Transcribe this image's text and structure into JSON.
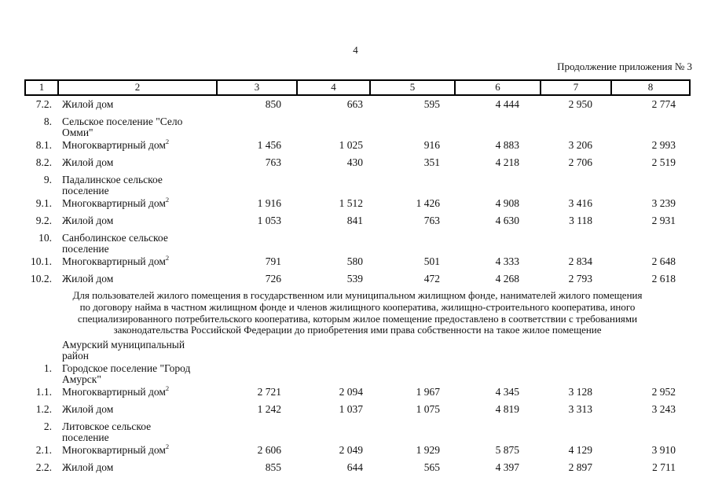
{
  "page": {
    "number": "4",
    "continuation": "Продолжение приложения № 3"
  },
  "table": {
    "header_columns": [
      "1",
      "2",
      "3",
      "4",
      "5",
      "6",
      "7",
      "8"
    ],
    "rows_top": [
      {
        "num": "7.2.",
        "name_lines": [
          "Жилой дом"
        ],
        "values": [
          "850",
          "663",
          "595",
          "4 444",
          "2 950",
          "2 774"
        ]
      },
      {
        "num": "8.",
        "name_lines": [
          "Сельское поселение \"Село",
          "Омми\""
        ],
        "values": []
      },
      {
        "num": "8.1.",
        "name_lines": [
          "Многоквартирный дом"
        ],
        "sup": "2",
        "values": [
          "1 456",
          "1 025",
          "916",
          "4 883",
          "3 206",
          "2 993"
        ]
      },
      {
        "num": "8.2.",
        "name_lines": [
          "Жилой дом"
        ],
        "values": [
          "763",
          "430",
          "351",
          "4 218",
          "2 706",
          "2 519"
        ]
      },
      {
        "num": "9.",
        "name_lines": [
          "Падалинское сельское",
          "поселение"
        ],
        "values": []
      },
      {
        "num": "9.1.",
        "name_lines": [
          "Многоквартирный дом"
        ],
        "sup": "2",
        "values": [
          "1 916",
          "1 512",
          "1 426",
          "4 908",
          "3 416",
          "3 239"
        ]
      },
      {
        "num": "9.2.",
        "name_lines": [
          "Жилой дом"
        ],
        "values": [
          "1 053",
          "841",
          "763",
          "4 630",
          "3 118",
          "2 931"
        ]
      },
      {
        "num": "10.",
        "name_lines": [
          "Санболинское сельское",
          "поселение"
        ],
        "values": []
      },
      {
        "num": "10.1.",
        "name_lines": [
          "Многоквартирный дом"
        ],
        "sup": "2",
        "values": [
          "791",
          "580",
          "501",
          "4 333",
          "2 834",
          "2 648"
        ]
      },
      {
        "num": "10.2.",
        "name_lines": [
          "Жилой дом"
        ],
        "values": [
          "726",
          "539",
          "472",
          "4 268",
          "2 793",
          "2 618"
        ]
      }
    ],
    "note_lines": [
      "Для пользователей жилого помещения в государственном или муниципальном жилищном фонде, нанимателей жилого помещения",
      "по договору найма в частном жилищном фонде и членов жилищного кооператива, жилищно-строительного кооператива, иного",
      "специализированного потребительского кооператива, которым жилое помещение предоставлено в соответствии с требованиями",
      "законодательства Российской Федерации до приобретения ими права собственности на такое жилое помещение"
    ],
    "rows_bottom": [
      {
        "num": "",
        "name_lines": [
          "Амурский муниципальный",
          "район"
        ],
        "values": []
      },
      {
        "num": "1.",
        "name_lines": [
          "Городское поселение \"Город",
          "Амурск\""
        ],
        "values": []
      },
      {
        "num": "1.1.",
        "name_lines": [
          "Многоквартирный дом"
        ],
        "sup": "2",
        "values": [
          "2 721",
          "2 094",
          "1 967",
          "4 345",
          "3 128",
          "2 952"
        ]
      },
      {
        "num": "1.2.",
        "name_lines": [
          "Жилой дом"
        ],
        "values": [
          "1 242",
          "1 037",
          "1 075",
          "4 819",
          "3 313",
          "3 243"
        ]
      },
      {
        "num": "2.",
        "name_lines": [
          "Литовское сельское",
          "поселение"
        ],
        "values": []
      },
      {
        "num": "2.1.",
        "name_lines": [
          "Многоквартирный дом"
        ],
        "sup": "2",
        "values": [
          "2 606",
          "2 049",
          "1 929",
          "5 875",
          "4 129",
          "3 910"
        ]
      },
      {
        "num": "2.2.",
        "name_lines": [
          "Жилой дом"
        ],
        "values": [
          "855",
          "644",
          "565",
          "4 397",
          "2 897",
          "2 711"
        ]
      }
    ]
  }
}
